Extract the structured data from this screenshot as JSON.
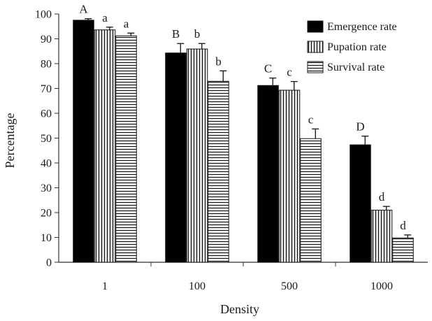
{
  "chart_data": {
    "type": "bar",
    "xlabel": "Density",
    "ylabel": "Percentage",
    "ylim": [
      0,
      100
    ],
    "yticks": [
      0,
      10,
      20,
      30,
      40,
      50,
      60,
      70,
      80,
      90,
      100
    ],
    "categories": [
      "1",
      "100",
      "500",
      "1000"
    ],
    "legend_position": "top-right",
    "series": [
      {
        "name": "Emergence rate",
        "pattern": "solid",
        "values": [
          97.5,
          84.3,
          71.2,
          47.3
        ],
        "errors": [
          0.6,
          3.8,
          3.0,
          3.5
        ],
        "significance": [
          "A",
          "B",
          "C",
          "D"
        ]
      },
      {
        "name": "Pupation rate",
        "pattern": "vertical-lines",
        "values": [
          93.6,
          85.9,
          69.3,
          21.0
        ],
        "errors": [
          1.1,
          2.2,
          3.5,
          1.5
        ],
        "significance": [
          "a",
          "b",
          "c",
          "d"
        ]
      },
      {
        "name": "Survival rate",
        "pattern": "horizontal-lines",
        "values": [
          91.2,
          72.9,
          49.8,
          9.8
        ],
        "errors": [
          1.1,
          4.2,
          3.9,
          1.2
        ],
        "significance": [
          "a",
          "b",
          "c",
          "d"
        ]
      }
    ]
  }
}
